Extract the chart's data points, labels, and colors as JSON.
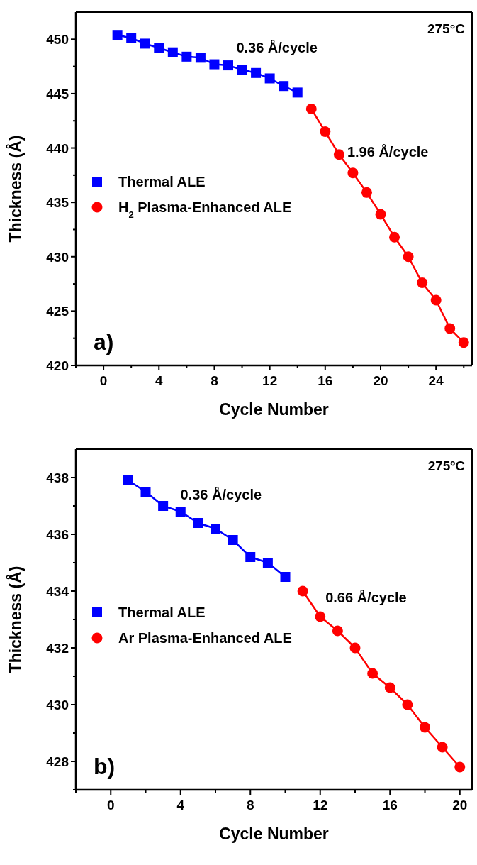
{
  "chart_data": [
    {
      "type": "line",
      "xlabel": "Cycle Number",
      "ylabel": "Thickness (Å)",
      "xlim": [
        -2,
        26.6
      ],
      "xticks": [
        {
          "value": -2,
          "label": null
        },
        0,
        {
          "value": 2,
          "label": null
        },
        4,
        {
          "value": 6,
          "label": null
        },
        8,
        {
          "value": 10,
          "label": null
        },
        12,
        {
          "value": 14,
          "label": null
        },
        16,
        {
          "value": 18,
          "label": null
        },
        20,
        {
          "value": 22,
          "label": null
        },
        24,
        {
          "value": 26,
          "label": null
        }
      ],
      "ylim": [
        420,
        452.5
      ],
      "yticks": [
        420,
        {
          "value": 422.5,
          "label": null
        },
        425,
        {
          "value": 427.5,
          "label": null
        },
        430,
        {
          "value": 432.5,
          "label": null
        },
        435,
        {
          "value": 437.5,
          "label": null
        },
        440,
        {
          "value": 442.5,
          "label": null
        },
        445,
        {
          "value": 447.5,
          "label": null
        },
        450
      ],
      "legend": "left",
      "line_style": "solid",
      "grid": false,
      "annotations": [
        "275°C",
        "a)",
        "0.36 Å/cycle",
        "1.96 Å/cycle"
      ],
      "series": [
        {
          "name": "Thermal ALE",
          "color": "#0000ff",
          "marker": "square",
          "x": [
            1,
            2,
            3,
            4,
            5,
            6,
            7,
            8,
            9,
            10,
            11,
            12,
            13,
            14
          ],
          "values": [
            450.4,
            450.1,
            449.6,
            449.2,
            448.8,
            448.4,
            448.3,
            447.7,
            447.6,
            447.2,
            446.9,
            446.4,
            445.7,
            445.1
          ]
        },
        {
          "name": "H$_{2}$ Plasma-Enhanced ALE",
          "color": "#ff0000",
          "marker": "circle",
          "x": [
            15,
            16,
            17,
            18,
            19,
            20,
            21,
            22,
            23,
            24,
            25,
            26
          ],
          "values": [
            443.6,
            441.5,
            439.4,
            437.7,
            435.9,
            433.9,
            431.8,
            430.0,
            427.6,
            426.0,
            423.4,
            422.1
          ]
        }
      ]
    },
    {
      "type": "line",
      "xlabel": "Cycle Number",
      "ylabel": "Thickness (Å)",
      "xlim": [
        -2,
        20.7
      ],
      "xticks": [
        {
          "value": -2,
          "label": null
        },
        0,
        {
          "value": 2,
          "label": null
        },
        4,
        {
          "value": 6,
          "label": null
        },
        8,
        {
          "value": 10,
          "label": null
        },
        12,
        {
          "value": 14,
          "label": null
        },
        16,
        {
          "value": 18,
          "label": null
        },
        20
      ],
      "ylim": [
        427,
        439
      ],
      "yticks": [
        {
          "value": 427,
          "label": null
        },
        428,
        {
          "value": 429,
          "label": null
        },
        430,
        {
          "value": 431,
          "label": null
        },
        432,
        {
          "value": 433,
          "label": null
        },
        434,
        {
          "value": 435,
          "label": null
        },
        436,
        {
          "value": 437,
          "label": null
        },
        438
      ],
      "legend": "left",
      "line_style": "solid",
      "grid": false,
      "annotations": [
        "275ºC",
        "b)",
        "0.36 Å/cycle",
        "0.66 Å/cycle"
      ],
      "series": [
        {
          "name": "Thermal ALE",
          "color": "#0000ff",
          "marker": "square",
          "x": [
            1,
            2,
            3,
            4,
            5,
            6,
            7,
            8,
            9,
            10
          ],
          "values": [
            437.9,
            437.5,
            437.0,
            436.8,
            436.4,
            436.2,
            435.8,
            435.2,
            435.0,
            434.5
          ]
        },
        {
          "name": "Ar Plasma-Enhanced ALE",
          "color": "#ff0000",
          "marker": "circle",
          "x": [
            11,
            12,
            13,
            14,
            15,
            16,
            17,
            18,
            19,
            20
          ],
          "values": [
            434.0,
            433.1,
            432.6,
            432.0,
            431.1,
            430.6,
            430.0,
            429.2,
            428.5,
            427.8
          ]
        }
      ]
    }
  ]
}
